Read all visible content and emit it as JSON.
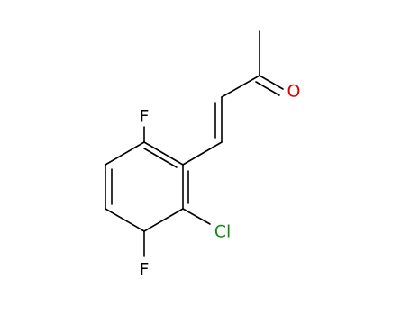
{
  "atoms": [
    {
      "label": "F"
    },
    {
      "label": "Cl"
    },
    {
      "label": "F"
    },
    {
      "label": "O"
    }
  ]
}
